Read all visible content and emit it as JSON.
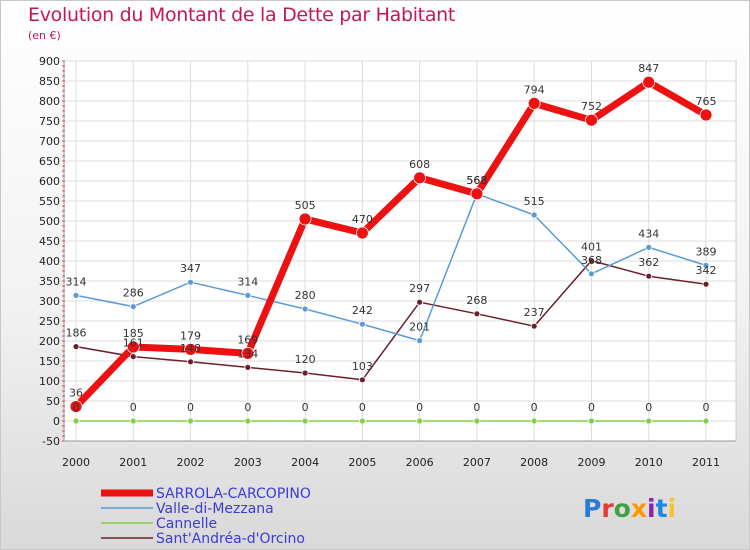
{
  "title": "Evolution du Montant de la Dette par Habitant",
  "subtitle": "(en €)",
  "brand": "Proxiti",
  "chart_data": {
    "type": "line",
    "x": [
      "2000",
      "2001",
      "2002",
      "2003",
      "2004",
      "2005",
      "2006",
      "2007",
      "2008",
      "2009",
      "2010",
      "2011"
    ],
    "ylim": [
      -50,
      900
    ],
    "yticks": [
      -50,
      0,
      50,
      100,
      150,
      200,
      250,
      300,
      350,
      400,
      450,
      500,
      550,
      600,
      650,
      700,
      750,
      800,
      850,
      900
    ],
    "series": [
      {
        "name": "Cannelle",
        "color": "#7fd14a",
        "width": 1.5,
        "radius": 3,
        "values": [
          0,
          0,
          0,
          0,
          0,
          0,
          0,
          0,
          0,
          0,
          0,
          0
        ],
        "labels": [
          "0",
          "0",
          "0",
          "0",
          "0",
          "0",
          "0",
          "0",
          "0",
          "0",
          "0",
          "0"
        ]
      },
      {
        "name": "Sant'Andréa-d'Orcino",
        "color": "#6b1f2a",
        "width": 1.5,
        "radius": 3,
        "values": [
          186,
          161,
          148,
          134,
          120,
          103,
          297,
          268,
          237,
          401,
          362,
          342
        ],
        "labels": [
          "186",
          "161",
          "148",
          "134",
          "120",
          "103",
          "297",
          "268",
          "237",
          "401",
          "362",
          "342"
        ]
      },
      {
        "name": "Valle-di-Mezzana",
        "color": "#5b9bd5",
        "width": 1.5,
        "radius": 3,
        "values": [
          314,
          286,
          347,
          314,
          280,
          242,
          201,
          568,
          515,
          368,
          434,
          389
        ],
        "labels": [
          "314",
          "286",
          "347",
          "314",
          "280",
          "242",
          "201",
          "568",
          "515",
          "368",
          "434",
          "389"
        ]
      },
      {
        "name": "SARROLA-CARCOPINO",
        "color": "#ee1111",
        "width": 7,
        "radius": 6,
        "values": [
          36,
          185,
          179,
          169,
          505,
          470,
          608,
          568,
          794,
          752,
          847,
          765
        ],
        "labels": [
          "36",
          "185",
          "179",
          "169",
          "505",
          "470",
          "608",
          "568",
          "794",
          "752",
          "847",
          "765"
        ]
      }
    ],
    "legend": [
      "SARROLA-CARCOPINO",
      "Valle-di-Mezzana",
      "Cannelle",
      "Sant'Andréa-d'Orcino"
    ],
    "legend_position": "bottom-left"
  }
}
